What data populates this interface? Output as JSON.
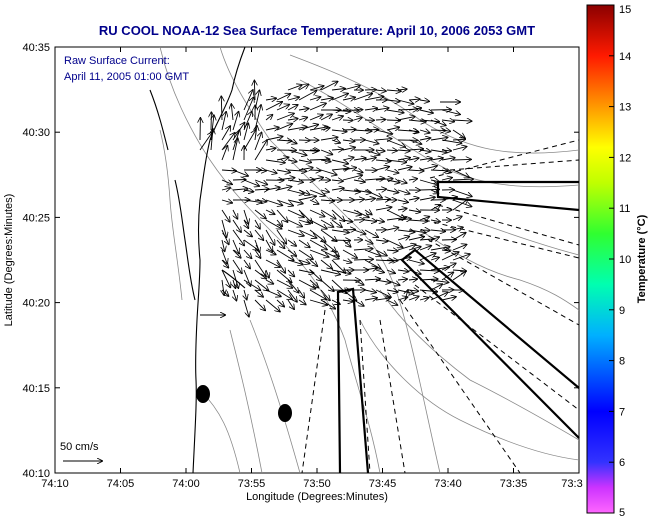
{
  "map": {
    "title": "RU COOL  NOAA-12  Sea Surface Temperature:  April 10, 2006 2053 GMT",
    "current_label_line1": "Raw Surface Current:",
    "current_label_line2": "April 11, 2005 01:00 GMT",
    "scale_label": "50 cm/s",
    "xlabel": "Longitude (Degrees:Minutes)",
    "ylabel": "Latitude (Degrees:Minutes)",
    "x_ticks": [
      "74:10",
      "74:05",
      "74:00",
      "73:55",
      "73:50",
      "73:45",
      "73:40",
      "73:35",
      "73:3"
    ],
    "y_ticks": [
      "40:35",
      "40:30",
      "40:25",
      "40:20",
      "40:15",
      "40:10"
    ],
    "colorbar": {
      "label": "Temperature (°C)",
      "ticks": [
        "15",
        "14",
        "13",
        "12",
        "11",
        "10",
        "9",
        "8",
        "7",
        "6",
        "5"
      ],
      "range": [
        5,
        15
      ],
      "colors": [
        "#ff00ff",
        "#0000ff",
        "#00bfff",
        "#00ffb0",
        "#40ff00",
        "#ffff00",
        "#ff8000",
        "#ff0000",
        "#8b0000"
      ]
    }
  }
}
